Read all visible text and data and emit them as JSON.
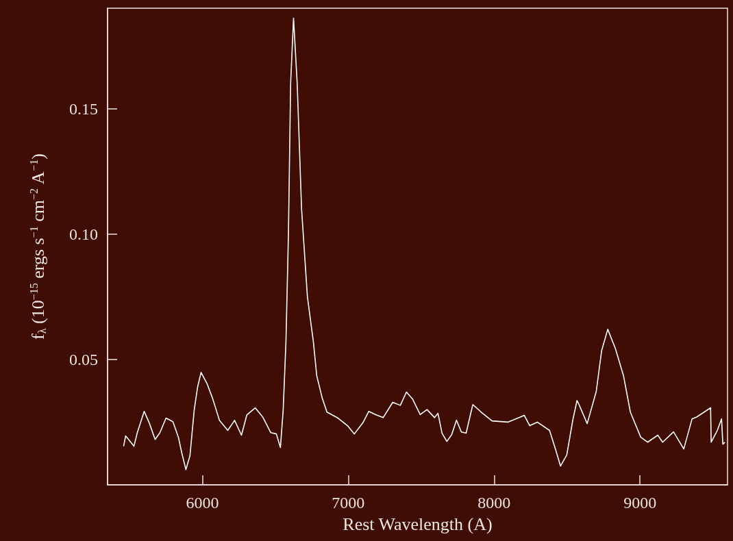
{
  "chart_data": {
    "type": "line",
    "xlabel": "Rest Wavelength (A)",
    "ylabel": "f$_{λ}$ (10$^{−15}$ ergs s$^{−1}$ cm$^{−2}$ A$^{−1}$)",
    "xlim": [
      5350,
      9600
    ],
    "xticks": [
      6000,
      7000,
      8000,
      9000
    ],
    "ylim": [
      0,
      0.19
    ],
    "yticks": [
      {
        "value": 0.05,
        "label": "0.05"
      },
      {
        "value": 0.1,
        "label": "0.10"
      },
      {
        "value": 0.15,
        "label": "0.15"
      }
    ],
    "marker": "none",
    "line_style": "solid",
    "series": [
      {
        "color": "#ffffff",
        "x": [
          5460,
          5474,
          5531,
          5554,
          5601,
          5638,
          5676,
          5709,
          5751,
          5798,
          5836,
          5859,
          5887,
          5915,
          5944,
          5967,
          5991,
          6033,
          6070,
          6117,
          6174,
          6221,
          6268,
          6305,
          6362,
          6413,
          6469,
          6507,
          6535,
          6554,
          6573,
          6590,
          6605,
          6625,
          6650,
          6680,
          6720,
          6761,
          6784,
          6822,
          6854,
          6930,
          6995,
          7042,
          7103,
          7141,
          7188,
          7239,
          7305,
          7357,
          7399,
          7441,
          7493,
          7540,
          7592,
          7615,
          7643,
          7676,
          7709,
          7742,
          7775,
          7808,
          7854,
          7911,
          7986,
          8094,
          8207,
          8244,
          8296,
          8380,
          8423,
          8455,
          8498,
          8540,
          8568,
          8582,
          8638,
          8700,
          8737,
          8779,
          8831,
          8887,
          8934,
          9005,
          9052,
          9122,
          9155,
          9230,
          9300,
          9357,
          9390,
          9484,
          9488,
          9530,
          9559,
          9568,
          9582
        ],
        "values": [
          0.0154,
          0.0195,
          0.0154,
          0.0208,
          0.0293,
          0.0244,
          0.0181,
          0.0208,
          0.0266,
          0.0252,
          0.0189,
          0.0127,
          0.0061,
          0.0116,
          0.0298,
          0.0389,
          0.0448,
          0.0402,
          0.0345,
          0.0257,
          0.0217,
          0.0257,
          0.0198,
          0.0279,
          0.0307,
          0.0271,
          0.0208,
          0.0203,
          0.0149,
          0.0298,
          0.057,
          0.1,
          0.16,
          0.186,
          0.16,
          0.11,
          0.075,
          0.057,
          0.0435,
          0.0345,
          0.029,
          0.0266,
          0.0236,
          0.0203,
          0.025,
          0.0293,
          0.028,
          0.0268,
          0.0329,
          0.0317,
          0.037,
          0.0342,
          0.028,
          0.03,
          0.0268,
          0.0285,
          0.0206,
          0.0173,
          0.02,
          0.0258,
          0.0211,
          0.0206,
          0.032,
          0.029,
          0.0255,
          0.025,
          0.0277,
          0.0236,
          0.025,
          0.0217,
          0.0138,
          0.0075,
          0.0119,
          0.026,
          0.0336,
          0.032,
          0.0244,
          0.0372,
          0.0535,
          0.062,
          0.0544,
          0.0435,
          0.029,
          0.019,
          0.017,
          0.0198,
          0.017,
          0.0211,
          0.0143,
          0.0263,
          0.0271,
          0.0307,
          0.017,
          0.0217,
          0.0263,
          0.0162,
          0.017
        ]
      }
    ]
  }
}
